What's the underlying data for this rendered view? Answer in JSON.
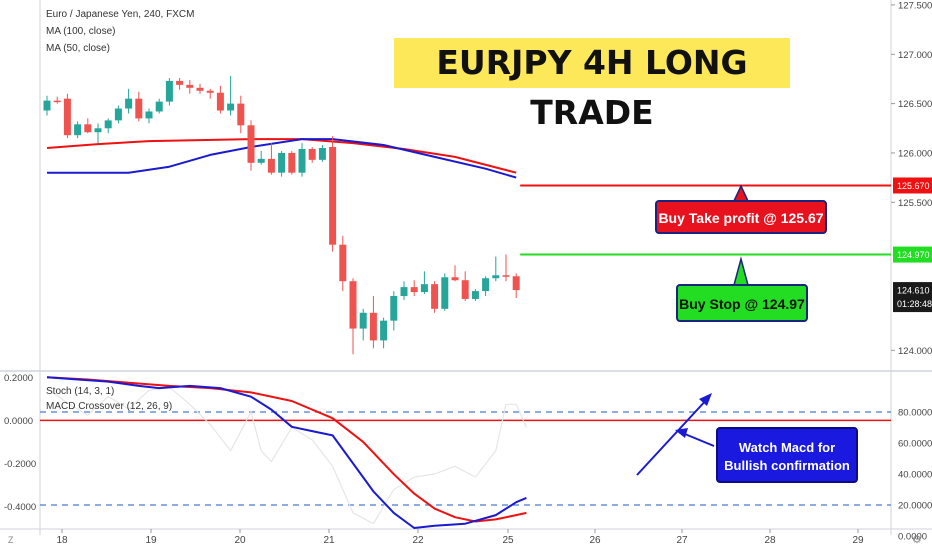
{
  "header": {
    "symbol_line": "Euro / Japanese Yen, 240, FXCM",
    "ma100_label": "MA (100, close)",
    "ma50_label": "MA (50, close)"
  },
  "annotations": {
    "title": "EURJPY 4H LONG TRADE",
    "take_profit": "Buy Take profit @ 125.67",
    "buy_stop": "Buy Stop @ 124.97",
    "macd_note_line1": "Watch Macd for",
    "macd_note_line2": "Bullish confirmation"
  },
  "oscillator": {
    "stoch_label": "Stoch (14, 3, 1)",
    "macd_label": "MACD Crossover (12, 26, 9)"
  },
  "colors": {
    "up": "#26a69a",
    "down": "#ef5350",
    "ma100": "#ee1111",
    "ma50": "#1a1ad0",
    "tp_line": "#ee1111",
    "stop_line": "#22dd22",
    "price_label_bg": "#1a1a1a",
    "stoch": "#e6e6e6",
    "macd": "#1a1ad0",
    "signal": "#ee1111",
    "dash": "#4a7bd0",
    "arrow": "#1a1ad0"
  },
  "axis": {
    "price_ticks": [
      "127.500",
      "127.000",
      "126.500",
      "126.000",
      "125.500",
      "124.000"
    ],
    "osc_left_ticks": [
      "0.2000",
      "0.0000",
      "-0.2000",
      "-0.4000"
    ],
    "osc_right_ticks": [
      "80.0000",
      "60.0000",
      "40.0000",
      "20.0000",
      "0.0000"
    ],
    "date_ticks": [
      "18",
      "19",
      "20",
      "21",
      "22",
      "25",
      "26",
      "27",
      "28",
      "29"
    ],
    "tp_price": "125.670",
    "stop_price": "124.970",
    "last_price": "124.610",
    "countdown": "01:28:48",
    "corner_left": "Z",
    "corner_right": "⚙"
  },
  "chart_data": {
    "type": "candlestick",
    "title": "Euro / Japanese Yen, 240, FXCM",
    "ylim": [
      123.8,
      127.55
    ],
    "candles": [
      {
        "o": 126.43,
        "h": 126.58,
        "l": 126.38,
        "c": 126.53
      },
      {
        "o": 126.53,
        "h": 126.57,
        "l": 126.5,
        "c": 126.52
      },
      {
        "o": 126.55,
        "h": 126.6,
        "l": 126.15,
        "c": 126.18
      },
      {
        "o": 126.18,
        "h": 126.32,
        "l": 126.15,
        "c": 126.29
      },
      {
        "o": 126.29,
        "h": 126.35,
        "l": 126.2,
        "c": 126.21
      },
      {
        "o": 126.21,
        "h": 126.3,
        "l": 126.1,
        "c": 126.25
      },
      {
        "o": 126.25,
        "h": 126.35,
        "l": 126.2,
        "c": 126.33
      },
      {
        "o": 126.33,
        "h": 126.48,
        "l": 126.3,
        "c": 126.45
      },
      {
        "o": 126.45,
        "h": 126.65,
        "l": 126.4,
        "c": 126.55
      },
      {
        "o": 126.55,
        "h": 126.62,
        "l": 126.32,
        "c": 126.35
      },
      {
        "o": 126.35,
        "h": 126.45,
        "l": 126.3,
        "c": 126.42
      },
      {
        "o": 126.42,
        "h": 126.55,
        "l": 126.4,
        "c": 126.52
      },
      {
        "o": 126.52,
        "h": 126.76,
        "l": 126.48,
        "c": 126.73
      },
      {
        "o": 126.73,
        "h": 126.76,
        "l": 126.64,
        "c": 126.69
      },
      {
        "o": 126.69,
        "h": 126.74,
        "l": 126.6,
        "c": 126.66
      },
      {
        "o": 126.66,
        "h": 126.7,
        "l": 126.6,
        "c": 126.63
      },
      {
        "o": 126.63,
        "h": 126.65,
        "l": 126.55,
        "c": 126.61
      },
      {
        "o": 126.61,
        "h": 126.68,
        "l": 126.4,
        "c": 126.43
      },
      {
        "o": 126.43,
        "h": 126.78,
        "l": 126.38,
        "c": 126.5
      },
      {
        "o": 126.5,
        "h": 126.58,
        "l": 126.2,
        "c": 126.28
      },
      {
        "o": 126.28,
        "h": 126.33,
        "l": 125.82,
        "c": 125.9
      },
      {
        "o": 125.9,
        "h": 126.02,
        "l": 125.88,
        "c": 125.94
      },
      {
        "o": 125.94,
        "h": 126.1,
        "l": 125.78,
        "c": 125.8
      },
      {
        "o": 125.8,
        "h": 126.02,
        "l": 125.76,
        "c": 126.0
      },
      {
        "o": 126.0,
        "h": 126.02,
        "l": 125.78,
        "c": 125.8
      },
      {
        "o": 125.8,
        "h": 126.1,
        "l": 125.76,
        "c": 126.04
      },
      {
        "o": 126.04,
        "h": 126.06,
        "l": 125.9,
        "c": 125.93
      },
      {
        "o": 125.93,
        "h": 126.08,
        "l": 125.91,
        "c": 126.05
      },
      {
        "o": 126.06,
        "h": 126.17,
        "l": 125.0,
        "c": 125.07
      },
      {
        "o": 125.07,
        "h": 125.16,
        "l": 124.6,
        "c": 124.7
      },
      {
        "o": 124.7,
        "h": 124.73,
        "l": 123.96,
        "c": 124.22
      },
      {
        "o": 124.22,
        "h": 124.42,
        "l": 124.1,
        "c": 124.38
      },
      {
        "o": 124.38,
        "h": 124.55,
        "l": 124.02,
        "c": 124.1
      },
      {
        "o": 124.1,
        "h": 124.33,
        "l": 124.02,
        "c": 124.3
      },
      {
        "o": 124.3,
        "h": 124.6,
        "l": 124.2,
        "c": 124.55
      },
      {
        "o": 124.55,
        "h": 124.7,
        "l": 124.51,
        "c": 124.64
      },
      {
        "o": 124.64,
        "h": 124.71,
        "l": 124.55,
        "c": 124.59
      },
      {
        "o": 124.59,
        "h": 124.8,
        "l": 124.57,
        "c": 124.67
      },
      {
        "o": 124.67,
        "h": 124.7,
        "l": 124.38,
        "c": 124.42
      },
      {
        "o": 124.42,
        "h": 124.78,
        "l": 124.4,
        "c": 124.74
      },
      {
        "o": 124.74,
        "h": 124.86,
        "l": 124.7,
        "c": 124.71
      },
      {
        "o": 124.71,
        "h": 124.8,
        "l": 124.5,
        "c": 124.52
      },
      {
        "o": 124.52,
        "h": 124.62,
        "l": 124.5,
        "c": 124.6
      },
      {
        "o": 124.6,
        "h": 124.75,
        "l": 124.55,
        "c": 124.73
      },
      {
        "o": 124.73,
        "h": 124.95,
        "l": 124.7,
        "c": 124.76
      },
      {
        "o": 124.76,
        "h": 124.97,
        "l": 124.7,
        "c": 124.75
      },
      {
        "o": 124.75,
        "h": 124.78,
        "l": 124.53,
        "c": 124.61
      }
    ],
    "ma100": [
      [
        0,
        126.05
      ],
      [
        5,
        126.09
      ],
      [
        10,
        126.12
      ],
      [
        15,
        126.13
      ],
      [
        20,
        126.14
      ],
      [
        25,
        126.14
      ],
      [
        30,
        126.1
      ],
      [
        35,
        126.04
      ],
      [
        40,
        125.96
      ],
      [
        46,
        125.8
      ]
    ],
    "ma50": [
      [
        0,
        125.8
      ],
      [
        5,
        125.8
      ],
      [
        8,
        125.8
      ],
      [
        12,
        125.86
      ],
      [
        16,
        125.98
      ],
      [
        20,
        126.06
      ],
      [
        25,
        126.14
      ],
      [
        28,
        126.14
      ],
      [
        33,
        126.08
      ],
      [
        38,
        125.96
      ],
      [
        43,
        125.84
      ],
      [
        46,
        125.75
      ]
    ],
    "tp_level": 125.67,
    "stop_level": 124.97,
    "osc_ylim": [
      -0.5,
      0.22
    ],
    "macd": [
      [
        0,
        0.2
      ],
      [
        3,
        0.19
      ],
      [
        6,
        0.18
      ],
      [
        9,
        0.16
      ],
      [
        11,
        0.15
      ],
      [
        14,
        0.16
      ],
      [
        17,
        0.15
      ],
      [
        20,
        0.11
      ],
      [
        22,
        0.05
      ],
      [
        24,
        -0.03
      ],
      [
        26,
        -0.05
      ],
      [
        28,
        -0.07
      ],
      [
        30,
        -0.2
      ],
      [
        32,
        -0.33
      ],
      [
        34,
        -0.43
      ],
      [
        36,
        -0.5
      ],
      [
        38,
        -0.49
      ],
      [
        41,
        -0.48
      ],
      [
        44,
        -0.44
      ],
      [
        46,
        -0.38
      ],
      [
        47,
        -0.36
      ]
    ],
    "signal": [
      [
        0,
        0.2
      ],
      [
        4,
        0.19
      ],
      [
        8,
        0.175
      ],
      [
        12,
        0.16
      ],
      [
        16,
        0.15
      ],
      [
        20,
        0.13
      ],
      [
        24,
        0.09
      ],
      [
        28,
        0.01
      ],
      [
        31,
        -0.1
      ],
      [
        34,
        -0.25
      ],
      [
        36,
        -0.34
      ],
      [
        38,
        -0.41
      ],
      [
        40,
        -0.45
      ],
      [
        42,
        -0.47
      ],
      [
        44,
        -0.46
      ],
      [
        46,
        -0.44
      ],
      [
        47,
        -0.43
      ]
    ],
    "stoch": [
      [
        0,
        95
      ],
      [
        2,
        86
      ],
      [
        4,
        78
      ],
      [
        6,
        90
      ],
      [
        8,
        82
      ],
      [
        10,
        94
      ],
      [
        12,
        96
      ],
      [
        14,
        85
      ],
      [
        16,
        72
      ],
      [
        18,
        55
      ],
      [
        20,
        80
      ],
      [
        21,
        55
      ],
      [
        22,
        48
      ],
      [
        24,
        70
      ],
      [
        26,
        62
      ],
      [
        28,
        45
      ],
      [
        30,
        15
      ],
      [
        32,
        8
      ],
      [
        34,
        30
      ],
      [
        36,
        38
      ],
      [
        38,
        40
      ],
      [
        40,
        45
      ],
      [
        42,
        38
      ],
      [
        44,
        55
      ],
      [
        45,
        85
      ],
      [
        46,
        85
      ],
      [
        47,
        70
      ]
    ],
    "osc_dash_levels": [
      80,
      20
    ]
  }
}
